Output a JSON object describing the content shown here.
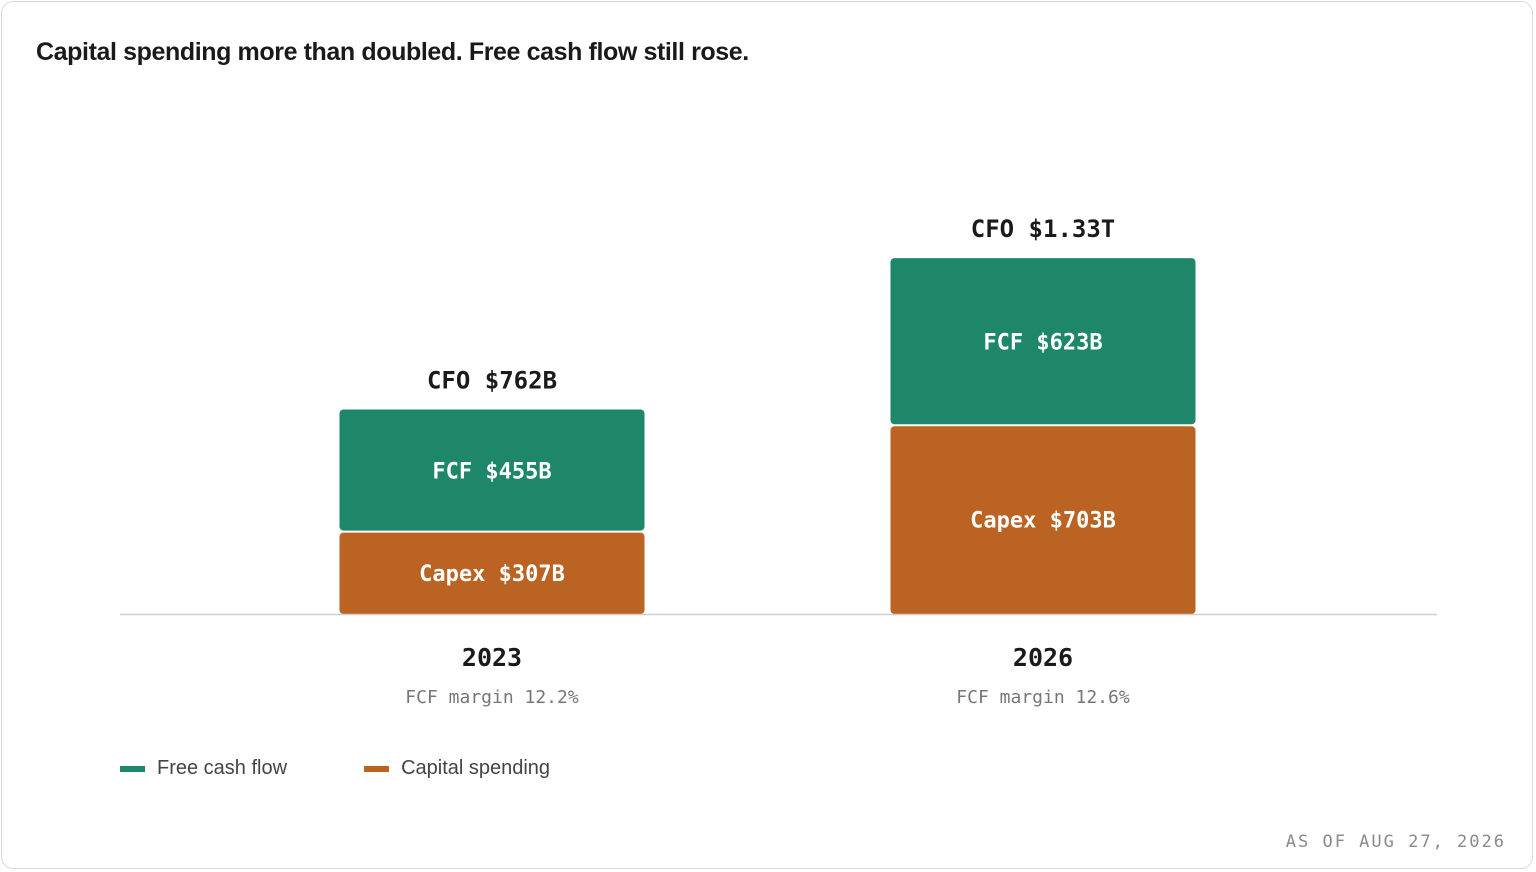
{
  "title": "Capital spending more than doubled. Free cash flow still rose.",
  "as_of": "AS OF AUG 27, 2026",
  "colors": {
    "fcf": "#1e8769",
    "capex": "#bb6322",
    "axis": "#d0d0d0"
  },
  "chart_data": {
    "type": "bar",
    "stacked": true,
    "categories": [
      "2023",
      "2026"
    ],
    "series": [
      {
        "name": "Capital spending",
        "values": [
          307,
          703
        ],
        "unit": "B",
        "labels": [
          "Capex $307B",
          "Capex $703B"
        ]
      },
      {
        "name": "Free cash flow",
        "values": [
          455,
          623
        ],
        "unit": "B",
        "labels": [
          "FCF $455B",
          "FCF $623B"
        ]
      }
    ],
    "totals": {
      "name": "CFO",
      "values": [
        762,
        1330
      ],
      "labels": [
        "CFO $762B",
        "CFO $1.33T"
      ]
    },
    "sublabels": [
      "FCF margin 12.2%",
      "FCF margin 12.6%"
    ],
    "ylim": [
      0,
      1330
    ],
    "grid": false,
    "legend": [
      {
        "label": "Free cash flow",
        "series": "Free cash flow"
      },
      {
        "label": "Capital spending",
        "series": "Capital spending"
      }
    ],
    "legend_position": "bottom-left"
  }
}
